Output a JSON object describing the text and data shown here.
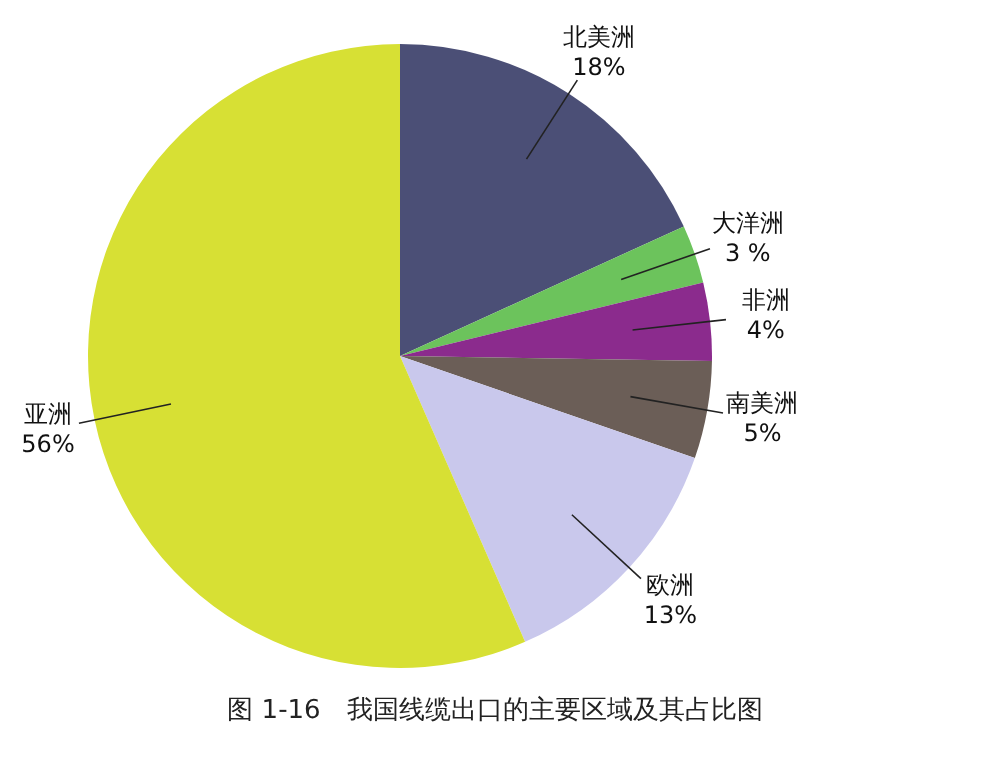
{
  "chart_data": {
    "type": "pie",
    "title": "图 1-16　我国线缆出口的主要区域及其占比图",
    "categories": [
      "北美洲",
      "大洋洲",
      "非洲",
      "南美洲",
      "欧洲",
      "亚洲"
    ],
    "values": [
      18,
      3,
      4,
      5,
      13,
      56
    ],
    "value_labels": [
      "18%",
      "3 %",
      "4%",
      "5%",
      "13%",
      "56%"
    ],
    "colors": [
      "#4b4f76",
      "#6cc35c",
      "#8b2b8d",
      "#6b5e57",
      "#c9c8ec",
      "#d7e034"
    ],
    "legend": false
  }
}
